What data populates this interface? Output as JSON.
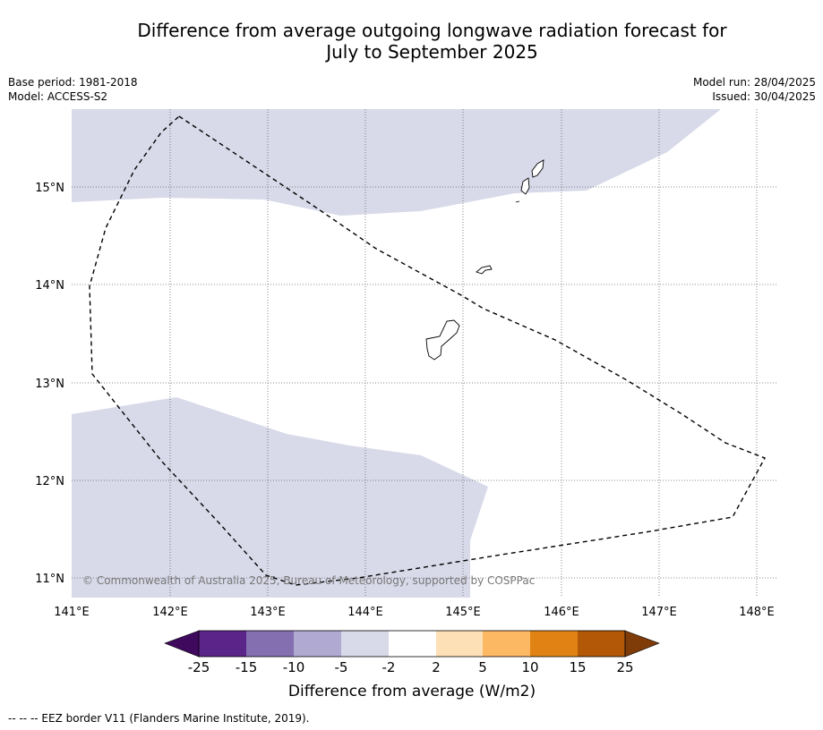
{
  "title_line1": "Difference from average outgoing longwave radiation forecast for",
  "title_line2": "July to September 2025",
  "meta": {
    "base_period": "Base period: 1981-2018",
    "model": "Model: ACCESS-S2",
    "model_run": "Model run: 28/04/2025",
    "issued": "Issued: 30/04/2025"
  },
  "map": {
    "lon_range": [
      141.0,
      148.2
    ],
    "lat_range": [
      10.8,
      15.8
    ],
    "lon_ticks": [
      "141°E",
      "142°E",
      "143°E",
      "144°E",
      "145°E",
      "146°E",
      "147°E",
      "148°E"
    ],
    "lat_ticks": [
      "15°N",
      "14°N",
      "13°N",
      "12°N",
      "11°N"
    ],
    "copyright": "© Commonwealth of Australia 2025, Bureau of Meteorology, supported by COSPPac",
    "fill_color": "#d8d9e9",
    "eez_border_style": "dashed"
  },
  "colorbar": {
    "tick_labels": [
      "-25",
      "-15",
      "-10",
      "-5",
      "-2",
      "2",
      "5",
      "10",
      "15",
      "25"
    ],
    "colors": [
      "#3f0a5e",
      "#5b2488",
      "#8470b0",
      "#b0a9d2",
      "#d8d9e9",
      "#ffffff",
      "#fde0b5",
      "#fdb863",
      "#e08214",
      "#b35806",
      "#7f3b08"
    ],
    "label": "Difference from average (W/m2)"
  },
  "footnote": "--  --  -- EEZ border V11 (Flanders Marine Institute, 2019)."
}
